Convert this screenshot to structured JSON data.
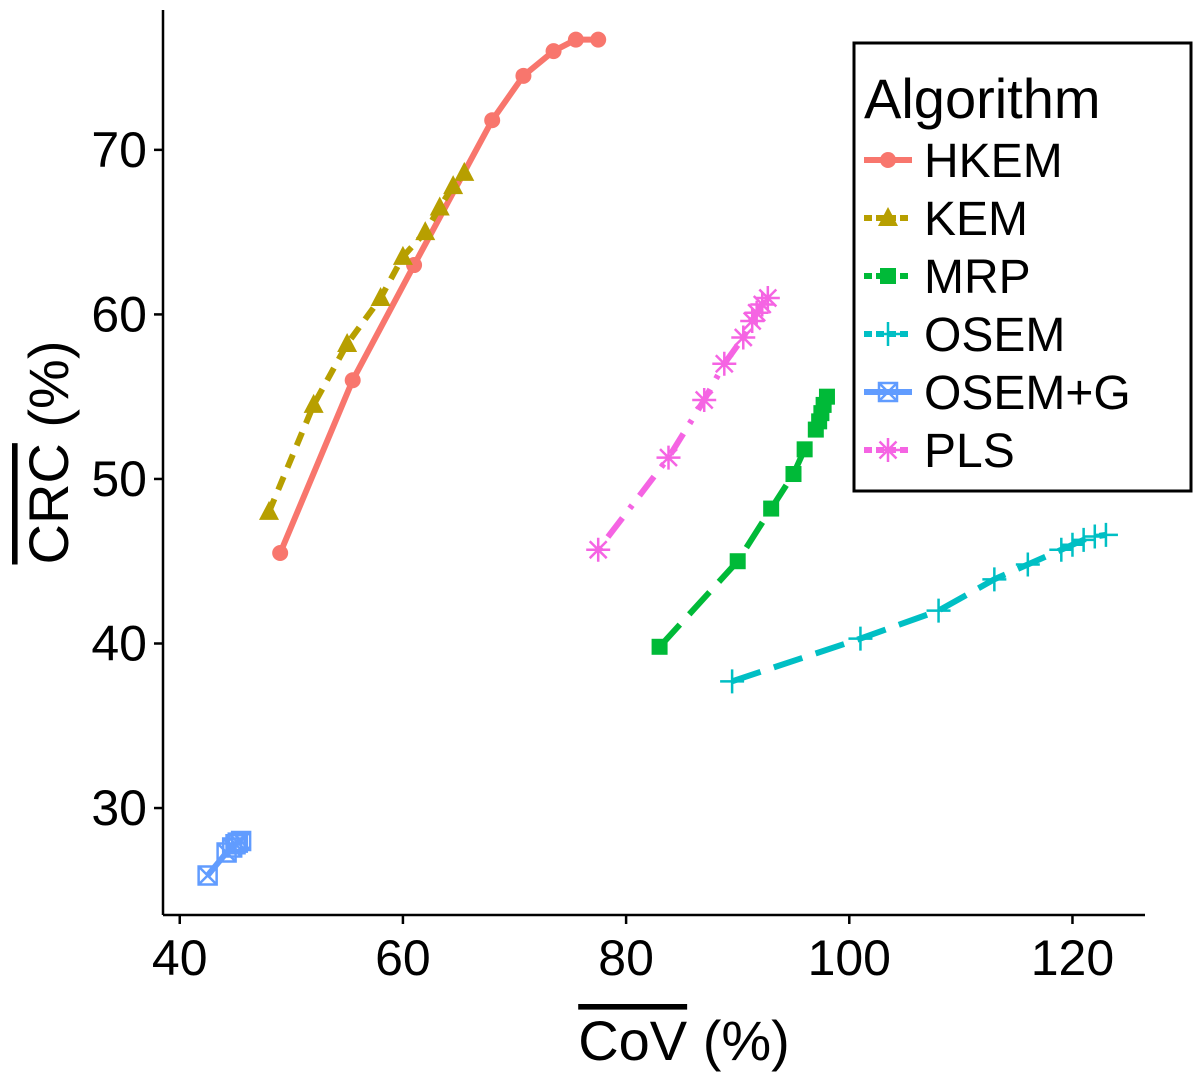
{
  "chart_data": {
    "type": "line",
    "title": "",
    "xlabel": "CoV (%)",
    "ylabel": "CRC (%)",
    "xlim": [
      38.5,
      126.5
    ],
    "ylim": [
      23.5,
      78.5
    ],
    "x_ticks": [
      40,
      60,
      80,
      100,
      120
    ],
    "y_ticks": [
      30,
      40,
      50,
      60,
      70
    ],
    "grid": false,
    "legend": {
      "title": "Algorithm",
      "position": "top-right"
    },
    "series": [
      {
        "name": "HKEM",
        "color": "#F8766D",
        "line": "solid",
        "marker": "circle",
        "points": [
          [
            49,
            45.5
          ],
          [
            55.5,
            56
          ],
          [
            61,
            63
          ],
          [
            68,
            71.8
          ],
          [
            70.8,
            74.5
          ],
          [
            73.5,
            76
          ],
          [
            75.5,
            76.7
          ],
          [
            77.5,
            76.7
          ]
        ]
      },
      {
        "name": "KEM",
        "color": "#B79F00",
        "line": "dashed",
        "marker": "triangle",
        "points": [
          [
            48,
            48
          ],
          [
            52,
            54.5
          ],
          [
            55,
            58.2
          ],
          [
            58,
            61
          ],
          [
            60,
            63.5
          ],
          [
            62,
            65
          ],
          [
            63.3,
            66.5
          ],
          [
            64.5,
            67.8
          ],
          [
            65.5,
            68.6
          ]
        ]
      },
      {
        "name": "MRP",
        "color": "#00BA38",
        "line": "longdash",
        "marker": "square",
        "points": [
          [
            83,
            39.8
          ],
          [
            90,
            45
          ],
          [
            93,
            48.2
          ],
          [
            95,
            50.3
          ],
          [
            96,
            51.8
          ],
          [
            97,
            53
          ],
          [
            97.3,
            53.5
          ],
          [
            97.5,
            54
          ],
          [
            97.7,
            54.5
          ],
          [
            98,
            55
          ]
        ]
      },
      {
        "name": "OSEM",
        "color": "#00BFC4",
        "line": "longdash",
        "marker": "plus",
        "points": [
          [
            89.5,
            37.7
          ],
          [
            101,
            40.3
          ],
          [
            108,
            42
          ],
          [
            113,
            43.9
          ],
          [
            116,
            44.8
          ],
          [
            119,
            45.7
          ],
          [
            120,
            46
          ],
          [
            121,
            46.3
          ],
          [
            122,
            46.5
          ],
          [
            123,
            46.6
          ]
        ]
      },
      {
        "name": "OSEM+G",
        "color": "#619CFF",
        "line": "solid",
        "marker": "square-cross",
        "points": [
          [
            42.5,
            25.9
          ],
          [
            44.2,
            27.3
          ],
          [
            44.7,
            27.6
          ],
          [
            45,
            27.8
          ],
          [
            45.2,
            27.9
          ],
          [
            45.5,
            28
          ]
        ]
      },
      {
        "name": "PLS",
        "color": "#F564E3",
        "line": "dotdash",
        "marker": "asterisk",
        "points": [
          [
            77.5,
            45.7
          ],
          [
            83.8,
            51.3
          ],
          [
            87,
            54.8
          ],
          [
            88.8,
            57
          ],
          [
            90.5,
            58.6
          ],
          [
            91.3,
            59.6
          ],
          [
            91.7,
            60.1
          ],
          [
            92.2,
            60.6
          ],
          [
            92.7,
            61
          ]
        ]
      }
    ]
  }
}
